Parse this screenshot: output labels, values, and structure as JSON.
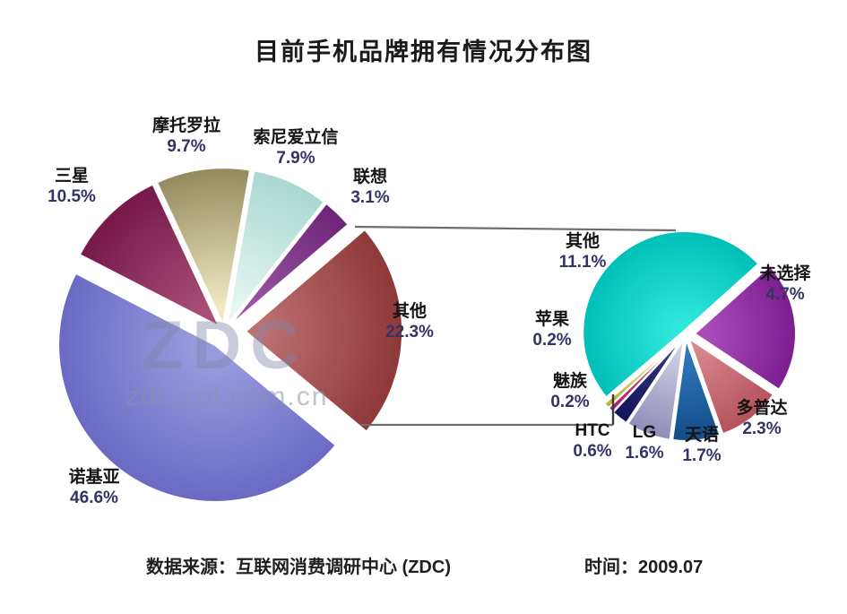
{
  "title": "目前手机品牌拥有情况分布图",
  "watermark": {
    "logo": "ZDC",
    "url": "zdc.zol.com.cn"
  },
  "footer": {
    "source": "数据来源：互联网消费调研中心 (ZDC)",
    "time": "时间：2009.07"
  },
  "chart_data": {
    "type": "pie",
    "variant": "pie-of-pie",
    "title": "目前手机品牌拥有情况分布图",
    "legend_position": "none",
    "text_colors": {
      "name": "#141414",
      "percent": "#333366"
    },
    "main_pie": {
      "name": "手机品牌份额主饼图",
      "slices": [
        {
          "label": "摩托罗拉",
          "value": 9.7,
          "pct": "9.7%",
          "color_outer": "#938B5E",
          "color_inner": "#EFE9C2"
        },
        {
          "label": "索尼爱立信",
          "value": 7.9,
          "pct": "7.9%",
          "color_outer": "#A9D8D0",
          "color_inner": "#E6F7F3"
        },
        {
          "label": "联想",
          "value": 3.1,
          "pct": "3.1%",
          "color_outer": "#6E2478",
          "color_inner": "#9C58A6"
        },
        {
          "label": "其他",
          "value": 22.3,
          "pct": "22.3%",
          "color_outer": "#8E3838",
          "color_inner": "#BC7070"
        },
        {
          "label": "诺基亚",
          "value": 46.6,
          "pct": "46.6%",
          "color_outer": "#6A6AC4",
          "color_inner": "#9A9ADE"
        },
        {
          "label": "三星",
          "value": 10.5,
          "pct": "10.5%",
          "color_outer": "#76184A",
          "color_inner": "#A85078"
        }
      ]
    },
    "secondary_pie": {
      "name": "其他品牌明细饼图",
      "slices": [
        {
          "label": "未选择",
          "value": 4.7,
          "pct": "4.7%",
          "color_outer": "#7C1E90",
          "color_inner": "#A94CBA"
        },
        {
          "label": "多普达",
          "value": 2.3,
          "pct": "2.3%",
          "color_outer": "#B5525C",
          "color_inner": "#D8888E"
        },
        {
          "label": "天语",
          "value": 1.7,
          "pct": "1.7%",
          "color_outer": "#134D88",
          "color_inner": "#3078BC"
        },
        {
          "label": "LG",
          "value": 1.6,
          "pct": "1.6%",
          "color_outer": "#8F8DB8",
          "color_inner": "#CFCFE4"
        },
        {
          "label": "HTC",
          "value": 0.6,
          "pct": "0.6%",
          "color_outer": "#14145A",
          "color_inner": "#343480"
        },
        {
          "label": "魅族",
          "value": 0.2,
          "pct": "0.2%",
          "color_outer": "#B02070",
          "color_inner": "#D44C9A"
        },
        {
          "label": "苹果",
          "value": 0.2,
          "pct": "0.2%",
          "color_outer": "#C0B030",
          "color_inner": "#E4DA6E"
        },
        {
          "label": "其他",
          "value": 11.1,
          "pct": "11.1%",
          "color_outer": "#00BFB8",
          "color_inner": "#2FE6DA"
        }
      ]
    }
  }
}
